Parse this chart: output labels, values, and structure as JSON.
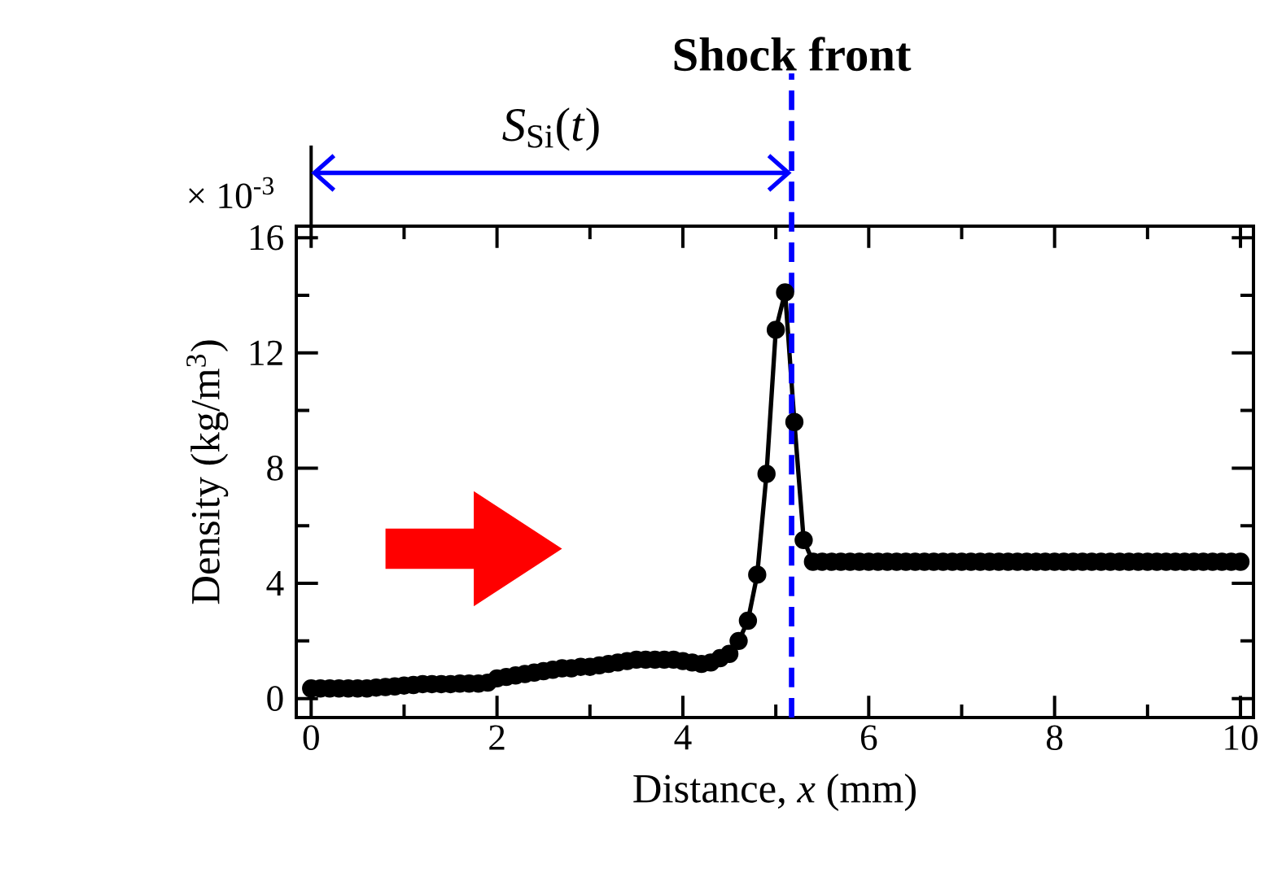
{
  "chart_data": {
    "type": "line",
    "title": null,
    "xlabel": "Distance, *x* (mm)",
    "ylabel": "Density (kg/m$^{3}$)",
    "annotations": [
      "*S*$_{Si}$(*t*)",
      "× 10$^{-3}$"
    ],
    "x": [
      0,
      0.1,
      0.2,
      0.3,
      0.4,
      0.5,
      0.6,
      0.7,
      0.8,
      0.9,
      1.0,
      1.1,
      1.2,
      1.3,
      1.4,
      1.5,
      1.6,
      1.7,
      1.8,
      1.9,
      2.0,
      2.1,
      2.2,
      2.3,
      2.4,
      2.5,
      2.6,
      2.7,
      2.8,
      2.9,
      3.0,
      3.1,
      3.2,
      3.3,
      3.4,
      3.5,
      3.6,
      3.7,
      3.8,
      3.9,
      4.0,
      4.1,
      4.2,
      4.3,
      4.4,
      4.5,
      4.6,
      4.7,
      4.8,
      4.9,
      5.0,
      5.1,
      5.2,
      5.3,
      5.4,
      5.5,
      5.6,
      5.7,
      5.8,
      5.9,
      6.0,
      6.1,
      6.2,
      6.3,
      6.4,
      6.5,
      6.6,
      6.7,
      6.8,
      6.9,
      7.0,
      7.1,
      7.2,
      7.3,
      7.4,
      7.5,
      7.6,
      7.7,
      7.8,
      7.9,
      8.0,
      8.1,
      8.2,
      8.3,
      8.4,
      8.5,
      8.6,
      8.7,
      8.8,
      8.9,
      9.0,
      9.1,
      9.2,
      9.3,
      9.4,
      9.5,
      9.6,
      9.7,
      9.8,
      9.9,
      10.0
    ],
    "series": [
      {
        "color": "#000000",
        "values": [
          0.35,
          0.35,
          0.35,
          0.35,
          0.35,
          0.35,
          0.35,
          0.38,
          0.4,
          0.42,
          0.45,
          0.47,
          0.5,
          0.5,
          0.5,
          0.5,
          0.52,
          0.52,
          0.52,
          0.55,
          0.7,
          0.75,
          0.8,
          0.85,
          0.9,
          0.95,
          1.0,
          1.05,
          1.05,
          1.1,
          1.1,
          1.15,
          1.2,
          1.25,
          1.3,
          1.35,
          1.35,
          1.35,
          1.35,
          1.35,
          1.3,
          1.25,
          1.2,
          1.25,
          1.4,
          1.55,
          2.0,
          2.7,
          4.3,
          7.8,
          12.8,
          14.1,
          9.6,
          5.5,
          4.75,
          4.75,
          4.75,
          4.75,
          4.75,
          4.75,
          4.75,
          4.75,
          4.75,
          4.75,
          4.75,
          4.75,
          4.75,
          4.75,
          4.75,
          4.75,
          4.75,
          4.75,
          4.75,
          4.75,
          4.75,
          4.75,
          4.75,
          4.75,
          4.75,
          4.75,
          4.75,
          4.75,
          4.75,
          4.75,
          4.75,
          4.75,
          4.75,
          4.75,
          4.75,
          4.75,
          4.75,
          4.75,
          4.75,
          4.75,
          4.75,
          4.75,
          4.75,
          4.75,
          4.75,
          4.75,
          4.75
        ]
      }
    ],
    "xlim": [
      -0.16,
      10.14
    ],
    "ylim": [
      -0.66,
      16.4
    ],
    "xticks": [
      0,
      2,
      4,
      6,
      8,
      10
    ],
    "yticks": [
      0,
      4,
      8,
      12,
      16
    ],
    "ref_lines": [
      {
        "axis": "x",
        "value": 5.17,
        "label": "**Shock front**",
        "color": "#0000ff",
        "line_style": "dashed"
      }
    ],
    "marker": "circle",
    "line_style": "solid",
    "grid": false
  }
}
